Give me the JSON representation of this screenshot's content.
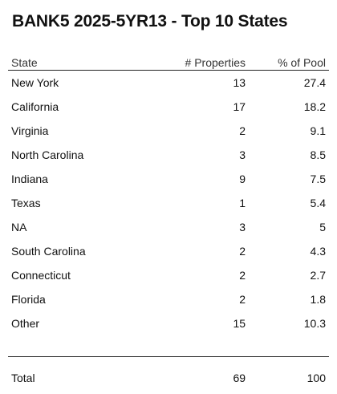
{
  "title": "BANK5 2025-5YR13 - Top 10 States",
  "headers": {
    "state": "State",
    "properties": "# Properties",
    "pool": "% of Pool"
  },
  "rows": [
    {
      "state": "New York",
      "properties": "13",
      "pool": "27.4"
    },
    {
      "state": "California",
      "properties": "17",
      "pool": "18.2"
    },
    {
      "state": "Virginia",
      "properties": "2",
      "pool": "9.1"
    },
    {
      "state": "North Carolina",
      "properties": "3",
      "pool": "8.5"
    },
    {
      "state": "Indiana",
      "properties": "9",
      "pool": "7.5"
    },
    {
      "state": "Texas",
      "properties": "1",
      "pool": "5.4"
    },
    {
      "state": "NA",
      "properties": "3",
      "pool": "5"
    },
    {
      "state": "South Carolina",
      "properties": "2",
      "pool": "4.3"
    },
    {
      "state": "Connecticut",
      "properties": "2",
      "pool": "2.7"
    },
    {
      "state": "Florida",
      "properties": "2",
      "pool": "1.8"
    },
    {
      "state": "Other",
      "properties": "15",
      "pool": "10.3"
    }
  ],
  "total": {
    "label": "Total",
    "properties": "69",
    "pool": "100"
  }
}
